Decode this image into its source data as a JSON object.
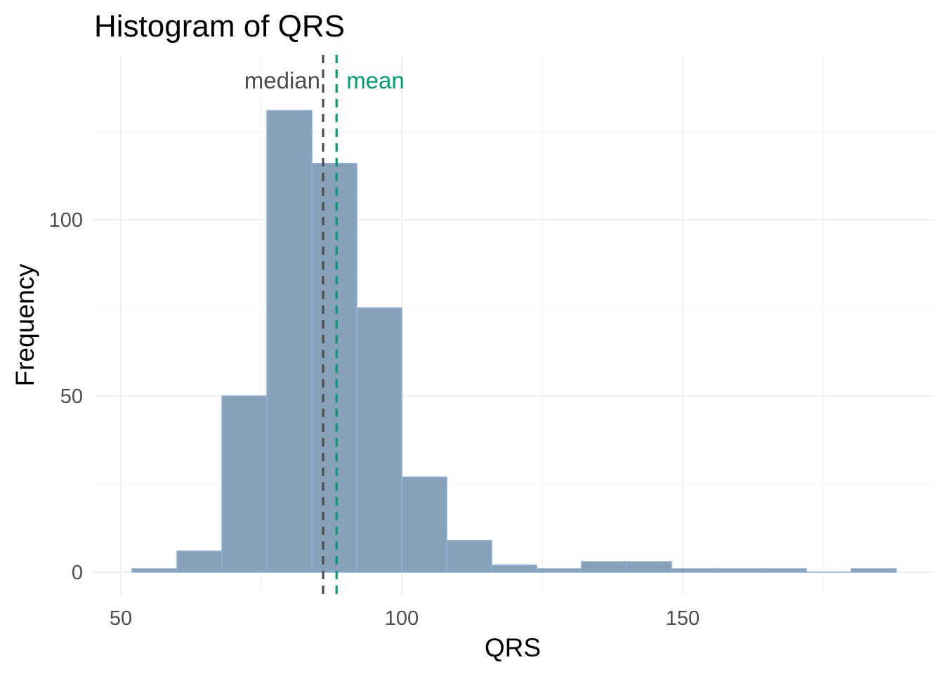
{
  "chart_data": {
    "type": "bar",
    "title": "Histogram of QRS",
    "xlabel": "QRS",
    "ylabel": "Frequency",
    "xlim": [
      50,
      190
    ],
    "ylim": [
      0,
      135
    ],
    "x_ticks": [
      50,
      100,
      150
    ],
    "y_ticks": [
      0,
      50,
      100
    ],
    "grid": true,
    "bar_color": "#87a2b8",
    "bar_edge_color": "#8fb0d8",
    "bins": [
      {
        "start": 52,
        "end": 60,
        "count": 1
      },
      {
        "start": 60,
        "end": 68,
        "count": 6
      },
      {
        "start": 68,
        "end": 76,
        "count": 50
      },
      {
        "start": 76,
        "end": 84,
        "count": 131
      },
      {
        "start": 84,
        "end": 92,
        "count": 116
      },
      {
        "start": 92,
        "end": 100,
        "count": 75
      },
      {
        "start": 100,
        "end": 108,
        "count": 27
      },
      {
        "start": 108,
        "end": 116,
        "count": 9
      },
      {
        "start": 116,
        "end": 124,
        "count": 2
      },
      {
        "start": 124,
        "end": 132,
        "count": 1
      },
      {
        "start": 132,
        "end": 140,
        "count": 3
      },
      {
        "start": 140,
        "end": 148,
        "count": 3
      },
      {
        "start": 148,
        "end": 156,
        "count": 1
      },
      {
        "start": 156,
        "end": 164,
        "count": 1
      },
      {
        "start": 164,
        "end": 172,
        "count": 1
      },
      {
        "start": 172,
        "end": 180,
        "count": 0
      },
      {
        "start": 180,
        "end": 188,
        "count": 1
      }
    ],
    "annotations": [
      {
        "label": "median",
        "value": 86,
        "color": "#4d4d4d"
      },
      {
        "label": "mean",
        "value": 88.4,
        "color": "#009e73"
      }
    ]
  }
}
